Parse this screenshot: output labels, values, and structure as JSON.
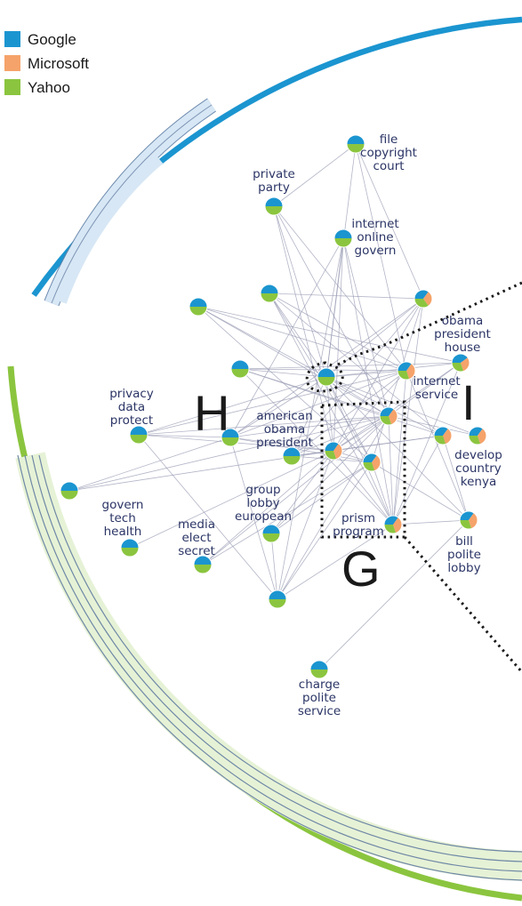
{
  "legend": [
    {
      "label": "Google",
      "color": "#1b95d0"
    },
    {
      "label": "Microsoft",
      "color": "#f5a36a"
    },
    {
      "label": "Yahoo",
      "color": "#8bc53f"
    }
  ],
  "regions": [
    "H",
    "I",
    "G"
  ],
  "nodes": [
    {
      "id": "file",
      "label": [
        "file",
        "copyright",
        "court"
      ],
      "mix": [
        0.5,
        0,
        0.5
      ]
    },
    {
      "id": "private",
      "label": [
        "private",
        "party"
      ],
      "mix": [
        0.5,
        0,
        0.5
      ]
    },
    {
      "id": "internet-online",
      "label": [
        "internet",
        "online",
        "govern"
      ],
      "mix": [
        0.5,
        0,
        0.5
      ]
    },
    {
      "id": "n4",
      "label": [],
      "mix": [
        0.5,
        0,
        0.5
      ]
    },
    {
      "id": "n5",
      "label": [],
      "mix": [
        0.5,
        0,
        0.5
      ]
    },
    {
      "id": "obama-house-left",
      "label": [],
      "mix": [
        0.35,
        0.3,
        0.35
      ]
    },
    {
      "id": "obama-house",
      "label": [
        "obama",
        "president",
        "house"
      ],
      "mix": [
        0.4,
        0.3,
        0.3
      ]
    },
    {
      "id": "n8",
      "label": [],
      "mix": [
        0.5,
        0,
        0.5
      ]
    },
    {
      "id": "hub-h",
      "label": [],
      "mix": [
        0.5,
        0,
        0.5
      ]
    },
    {
      "id": "n10",
      "label": [],
      "mix": [
        0.35,
        0.35,
        0.3
      ]
    },
    {
      "id": "privacy",
      "label": [
        "privacy",
        "data",
        "protect"
      ],
      "mix": [
        0.5,
        0,
        0.5
      ]
    },
    {
      "id": "n12",
      "label": [],
      "mix": [
        0.5,
        0,
        0.5
      ]
    },
    {
      "id": "american-obama",
      "label": [
        "american",
        "obama",
        "president"
      ],
      "mix": [
        0.5,
        0,
        0.5
      ]
    },
    {
      "id": "internet-service",
      "label": [
        "internet",
        "service"
      ],
      "mix": [
        0.35,
        0.35,
        0.3
      ]
    },
    {
      "id": "n15",
      "label": [],
      "mix": [
        0.35,
        0.35,
        0.3
      ]
    },
    {
      "id": "develop",
      "label": [
        "develop",
        "country",
        "kenya"
      ],
      "mix": [
        0.35,
        0.35,
        0.3
      ]
    },
    {
      "id": "n17",
      "label": [],
      "mix": [
        0.35,
        0.35,
        0.3
      ]
    },
    {
      "id": "n18",
      "label": [],
      "mix": [
        0.35,
        0.35,
        0.3
      ]
    },
    {
      "id": "n19",
      "label": [],
      "mix": [
        0.5,
        0,
        0.5
      ]
    },
    {
      "id": "govern-tech",
      "label": [
        "govern",
        "tech",
        "health"
      ],
      "mix": [
        0.5,
        0,
        0.5
      ]
    },
    {
      "id": "group-lobby",
      "label": [
        "group",
        "lobby",
        "european"
      ],
      "mix": [
        0.5,
        0,
        0.5
      ]
    },
    {
      "id": "media",
      "label": [
        "media",
        "elect",
        "secret"
      ],
      "mix": [
        0.5,
        0,
        0.5
      ]
    },
    {
      "id": "prism",
      "label": [
        "prism",
        "program"
      ],
      "mix": [
        0.35,
        0.35,
        0.3
      ]
    },
    {
      "id": "bill",
      "label": [
        "bill",
        "polite",
        "lobby"
      ],
      "mix": [
        0.35,
        0.35,
        0.3
      ]
    },
    {
      "id": "n25",
      "label": [],
      "mix": [
        0.5,
        0,
        0.5
      ]
    },
    {
      "id": "charge",
      "label": [
        "charge",
        "polite",
        "service"
      ],
      "mix": [
        0.5,
        0,
        0.5
      ]
    }
  ]
}
